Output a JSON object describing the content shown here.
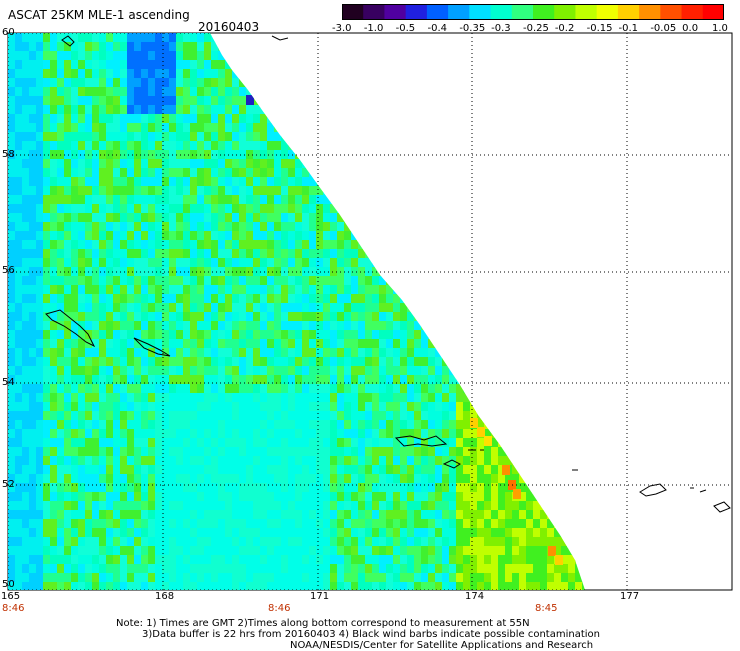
{
  "header": {
    "product": "ASCAT 25KM MLE-1 ascending",
    "date": "20160403"
  },
  "colorbar": {
    "labels": [
      "-3.0",
      "-1.0",
      "-0.5",
      "-0.4",
      "-0.35",
      "-0.3",
      "-0.25",
      "-0.2",
      "-0.15",
      "-0.1",
      "-0.05",
      "0.0",
      "1.0"
    ],
    "colors": [
      "#200020",
      "#380060",
      "#5000a0",
      "#2020e0",
      "#0060ff",
      "#00a0ff",
      "#00e0ff",
      "#00ffd0",
      "#30ff80",
      "#40f020",
      "#80f000",
      "#c0ff00",
      "#f0ff00",
      "#ffd000",
      "#ff9000",
      "#ff5000",
      "#ff2000",
      "#ff0000"
    ]
  },
  "axes": {
    "lat_labels": [
      "60",
      "58",
      "56",
      "54",
      "52",
      "50"
    ],
    "lon_labels": [
      "165",
      "168",
      "171",
      "174",
      "177"
    ],
    "time_labels": [
      "8:46",
      "8:46",
      "8:45"
    ]
  },
  "notes": {
    "line1": "Note: 1) Times are GMT 2)Times along bottom correspond to measurement at 55N",
    "line2": "3)Data buffer is 22 hrs from 20160403 4) Black wind barbs indicate possible contamination",
    "line3": "NOAA/NESDIS/Center for Satellite Applications and Research"
  }
}
